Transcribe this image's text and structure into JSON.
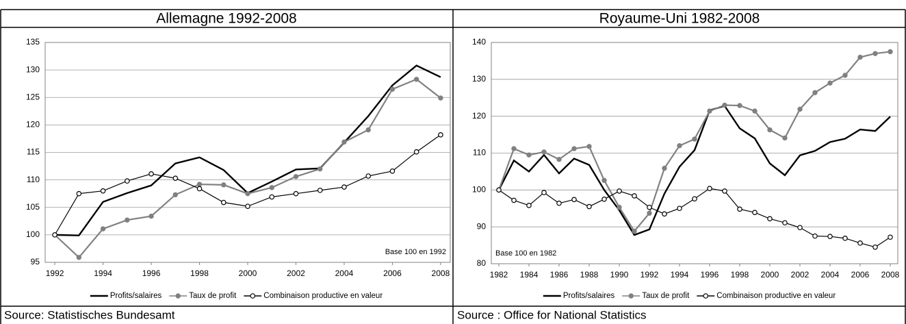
{
  "chart_data": [
    {
      "type": "line",
      "title": "Allemagne 1992-2008",
      "source": "Source: Statistisches Bundesamt",
      "note": "Base 100 en 1992",
      "note_position": "bottom-right",
      "grid": true,
      "x": [
        1992,
        1993,
        1994,
        1995,
        1996,
        1997,
        1998,
        1999,
        2000,
        2001,
        2002,
        2003,
        2004,
        2005,
        2006,
        2007,
        2008
      ],
      "xlim": [
        1991.6,
        2008.4
      ],
      "xticks": [
        1992,
        1994,
        1996,
        1998,
        2000,
        2002,
        2004,
        2006,
        2008
      ],
      "ylim": [
        95,
        135
      ],
      "yticks": [
        95,
        100,
        105,
        110,
        115,
        120,
        125,
        130,
        135
      ],
      "series": [
        {
          "name": "Profits/salaires",
          "color": "#000000",
          "marker": "none",
          "values": [
            100,
            99.9,
            106,
            107.6,
            109,
            113,
            114.1,
            111.8,
            107.6,
            109.7,
            111.9,
            112.1,
            116.8,
            121.6,
            127.2,
            130.8,
            128.7
          ]
        },
        {
          "name": "Taux de profit",
          "color": "#808080",
          "marker": "filled",
          "values": [
            100,
            95.9,
            101.1,
            102.7,
            103.4,
            107.3,
            109.2,
            109.1,
            107.5,
            108.6,
            110.6,
            112,
            116.9,
            119.1,
            126.5,
            128.3,
            124.9
          ]
        },
        {
          "name": "Combinaison productive en valeur",
          "color": "#000000",
          "marker": "open",
          "values": [
            100,
            107.5,
            108,
            109.8,
            111.1,
            110.3,
            108.4,
            105.9,
            105.2,
            106.9,
            107.5,
            108.1,
            108.7,
            110.7,
            111.6,
            115.1,
            118.2
          ]
        }
      ]
    },
    {
      "type": "line",
      "title": "Royaume-Uni 1982-2008",
      "source": "Source : Office for National Statistics",
      "note": "Base 100 en 1982",
      "note_position": "bottom-left",
      "grid": true,
      "x": [
        1982,
        1983,
        1984,
        1985,
        1986,
        1987,
        1988,
        1989,
        1990,
        1991,
        1992,
        1993,
        1994,
        1995,
        1996,
        1997,
        1998,
        1999,
        2000,
        2001,
        2002,
        2003,
        2004,
        2005,
        2006,
        2007,
        2008
      ],
      "xlim": [
        1981.5,
        2008.5
      ],
      "xticks": [
        1982,
        1984,
        1986,
        1988,
        1990,
        1992,
        1994,
        1996,
        1998,
        2000,
        2002,
        2004,
        2006,
        2008
      ],
      "ylim": [
        80,
        140
      ],
      "yticks": [
        80,
        90,
        100,
        110,
        120,
        130,
        140
      ],
      "series": [
        {
          "name": "Profits/salaires",
          "color": "#000000",
          "marker": "none",
          "values": [
            100,
            108,
            105,
            109.5,
            104.5,
            108.5,
            106.8,
            100,
            94.5,
            87.8,
            89.3,
            99,
            106.3,
            110.8,
            121.6,
            122.8,
            116.7,
            114,
            107.2,
            104,
            109.4,
            110.6,
            113,
            113.9,
            116.4,
            116,
            119.9
          ]
        },
        {
          "name": "Taux de profit",
          "color": "#808080",
          "marker": "filled",
          "values": [
            100,
            111.2,
            109.5,
            110.3,
            108.3,
            111.2,
            111.8,
            102.6,
            95.3,
            88.8,
            93.7,
            105.9,
            112,
            113.8,
            121.4,
            123,
            122.9,
            121.4,
            116.3,
            114.1,
            121.9,
            126.4,
            129,
            131.1,
            136,
            137,
            137.5
          ]
        },
        {
          "name": "Combinaison productive en valeur",
          "color": "#000000",
          "marker": "open",
          "values": [
            100,
            97.2,
            95.8,
            99.3,
            96.4,
            97.4,
            95.5,
            97.5,
            99.7,
            98.4,
            95.3,
            93.5,
            95,
            97.6,
            100.4,
            99.7,
            94.8,
            93.9,
            92.2,
            91.1,
            89.8,
            87.5,
            87.4,
            86.9,
            85.6,
            84.5,
            87.2
          ]
        }
      ]
    }
  ]
}
